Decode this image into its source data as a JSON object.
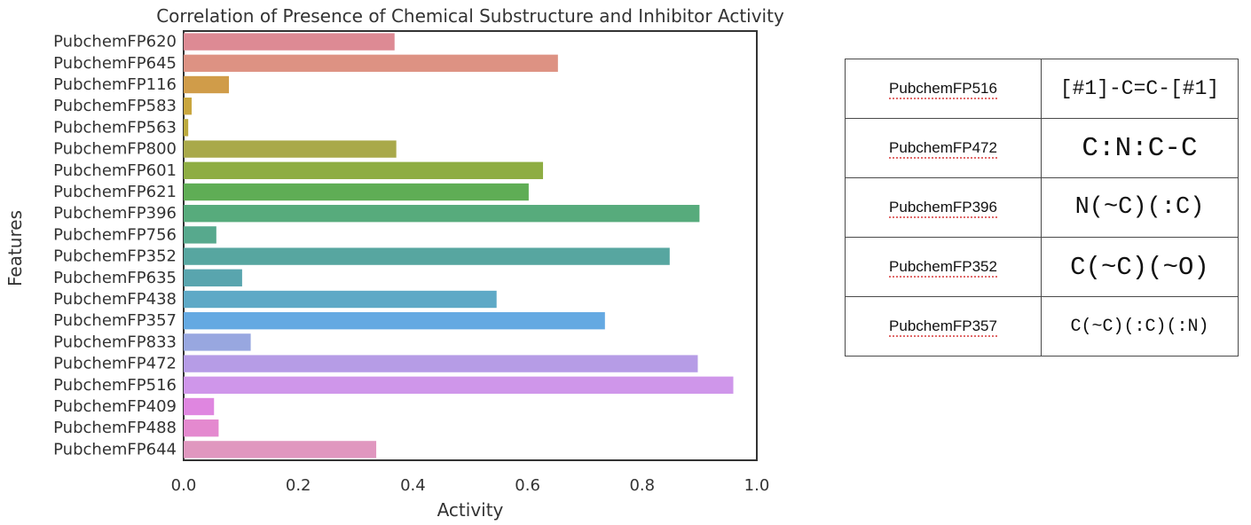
{
  "chart_data": {
    "type": "bar",
    "orientation": "horizontal",
    "title": "Correlation of Presence of Chemical Substructure and Inhibitor Activity",
    "xlabel": "Activity",
    "ylabel": "Features",
    "xlim": [
      0.0,
      1.0
    ],
    "xticks": [
      "0.0",
      "0.2",
      "0.4",
      "0.6",
      "0.8",
      "1.0"
    ],
    "grid": false,
    "categories": [
      "PubchemFP620",
      "PubchemFP645",
      "PubchemFP116",
      "PubchemFP583",
      "PubchemFP563",
      "PubchemFP800",
      "PubchemFP601",
      "PubchemFP621",
      "PubchemFP396",
      "PubchemFP756",
      "PubchemFP352",
      "PubchemFP635",
      "PubchemFP438",
      "PubchemFP357",
      "PubchemFP833",
      "PubchemFP472",
      "PubchemFP516",
      "PubchemFP409",
      "PubchemFP488",
      "PubchemFP644"
    ],
    "values": [
      0.368,
      0.653,
      0.079,
      0.014,
      0.008,
      0.371,
      0.627,
      0.602,
      0.9,
      0.057,
      0.848,
      0.102,
      0.546,
      0.735,
      0.117,
      0.897,
      0.959,
      0.053,
      0.061,
      0.336
    ],
    "colors": [
      "#dd8a94",
      "#dd9283",
      "#d09c49",
      "#c9a63e",
      "#bcaa3e",
      "#a9a94a",
      "#8ead43",
      "#5fad55",
      "#57ab7c",
      "#57a98d",
      "#57a6a0",
      "#59a5ae",
      "#5ea9c6",
      "#64a9e2",
      "#98a7e0",
      "#b69ce6",
      "#cf96ea",
      "#df86e0",
      "#e489cf",
      "#e097bf"
    ]
  },
  "table": {
    "rows": [
      {
        "feature": "PubchemFP516",
        "smarts": "[#1]-C=C-[#1]"
      },
      {
        "feature": "PubchemFP472",
        "smarts": "C:N:C-C"
      },
      {
        "feature": "PubchemFP396",
        "smarts": "N(~C)(:C)"
      },
      {
        "feature": "PubchemFP352",
        "smarts": "C(~C)(~O)"
      },
      {
        "feature": "PubchemFP357",
        "smarts": "C(~C)(:C)(:N)"
      }
    ]
  }
}
